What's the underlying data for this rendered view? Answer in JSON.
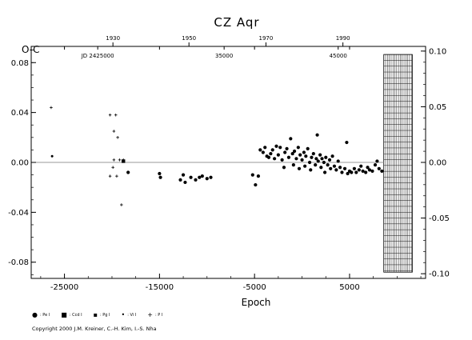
{
  "chart_data": {
    "type": "scatter",
    "title": "CZ Aqr",
    "ylabel": "O-C",
    "xlabel": "Epoch",
    "xlim": [
      -28500,
      13000
    ],
    "ylim": [
      -0.093,
      0.093
    ],
    "right_ylim": [
      -0.1042,
      0.1042
    ],
    "x_ticks": [
      -25000,
      -15000,
      -5000,
      5000
    ],
    "x_tick_labels": [
      "-25000",
      "-15000",
      "-5000",
      "5000"
    ],
    "y_ticks": [
      -0.08,
      -0.04,
      0.0,
      0.04,
      0.08
    ],
    "y_tick_labels": [
      "-0.08",
      "-0.04",
      "0.00",
      "0.04",
      "0.08"
    ],
    "right_ticks": [
      -0.1,
      -0.05,
      0.0,
      0.05,
      0.1
    ],
    "right_tick_labels": [
      "-0.10",
      "-0.05",
      "0.00",
      "0.05",
      "0.10"
    ],
    "top_year_ticks": [
      {
        "x": -19900,
        "label": "1930"
      },
      {
        "x": -11900,
        "label": "1950"
      },
      {
        "x": -3800,
        "label": "1970"
      },
      {
        "x": 4300,
        "label": "1990"
      }
    ],
    "jd_labels": [
      {
        "x": -21500,
        "label": "JD 2425000"
      },
      {
        "x": -8200,
        "label": "35000"
      },
      {
        "x": 3800,
        "label": "45000"
      }
    ],
    "grid_band": {
      "x_start": 8600,
      "x_end": 11600
    },
    "zero_line": 0,
    "legend": [
      {
        "symbol": "●",
        "label": ": Pe I"
      },
      {
        "symbol": "■",
        "label": ": Ccd I"
      },
      {
        "symbol": "▪",
        "label": ": Pg I"
      },
      {
        "symbol": "•",
        "label": ": Vi I"
      },
      {
        "symbol": "+",
        "label": ": P I"
      }
    ],
    "series": [
      {
        "name": ": Pe I",
        "marker": "dot",
        "points": [
          [
            -18300,
            -0.008
          ],
          [
            -15000,
            -0.009
          ],
          [
            -14900,
            -0.012
          ],
          [
            -12800,
            -0.014
          ],
          [
            -12500,
            -0.01
          ],
          [
            -12300,
            -0.016
          ],
          [
            -11700,
            -0.012
          ],
          [
            -11200,
            -0.014
          ],
          [
            -10800,
            -0.012
          ],
          [
            -10500,
            -0.011
          ],
          [
            -10000,
            -0.013
          ],
          [
            -9600,
            -0.012
          ],
          [
            -5200,
            -0.01
          ],
          [
            -4900,
            -0.018
          ],
          [
            -4600,
            -0.011
          ],
          [
            -4400,
            0.01
          ],
          [
            -4100,
            0.008
          ],
          [
            -3900,
            0.012
          ],
          [
            -3700,
            0.005
          ],
          [
            -3500,
            0.004
          ],
          [
            -3300,
            0.007
          ],
          [
            -3100,
            0.01
          ],
          [
            -2900,
            0.003
          ],
          [
            -2700,
            0.013
          ],
          [
            -2500,
            0.006
          ],
          [
            -2300,
            0.012
          ],
          [
            -2100,
            0.002
          ],
          [
            -1900,
            -0.004
          ],
          [
            -1800,
            0.008
          ],
          [
            -1600,
            0.011
          ],
          [
            -1400,
            0.004
          ],
          [
            -1200,
            0.019
          ],
          [
            -1000,
            0.007
          ],
          [
            -900,
            -0.002
          ],
          [
            -800,
            0.009
          ],
          [
            -600,
            0.003
          ],
          [
            -400,
            0.012
          ],
          [
            -300,
            -0.005
          ],
          [
            -200,
            0.006
          ],
          [
            0,
            0.002
          ],
          [
            200,
            0.008
          ],
          [
            300,
            -0.003
          ],
          [
            400,
            0.005
          ],
          [
            600,
            0.011
          ],
          [
            800,
            0.0
          ],
          [
            900,
            -0.006
          ],
          [
            1000,
            0.004
          ],
          [
            1200,
            0.007
          ],
          [
            1400,
            -0.002
          ],
          [
            1500,
            0.003
          ],
          [
            1600,
            0.022
          ],
          [
            1700,
            0.001
          ],
          [
            1900,
            0.006
          ],
          [
            2000,
            -0.004
          ],
          [
            2100,
            0.003
          ],
          [
            2300,
            0.0
          ],
          [
            2400,
            -0.008
          ],
          [
            2500,
            0.004
          ],
          [
            2700,
            -0.002
          ],
          [
            2900,
            0.002
          ],
          [
            3000,
            -0.005
          ],
          [
            3200,
            0.005
          ],
          [
            3400,
            -0.003
          ],
          [
            3600,
            -0.006
          ],
          [
            3800,
            0.001
          ],
          [
            4000,
            -0.004
          ],
          [
            4200,
            -0.008
          ],
          [
            4500,
            -0.005
          ],
          [
            4700,
            0.016
          ],
          [
            4800,
            -0.009
          ],
          [
            5000,
            -0.007
          ],
          [
            5200,
            -0.008
          ],
          [
            5500,
            -0.005
          ],
          [
            5700,
            -0.008
          ],
          [
            6000,
            -0.006
          ],
          [
            6200,
            -0.003
          ],
          [
            6400,
            -0.007
          ],
          [
            6700,
            -0.008
          ],
          [
            6900,
            -0.004
          ],
          [
            7100,
            -0.006
          ],
          [
            7400,
            -0.007
          ],
          [
            7700,
            -0.002
          ],
          [
            7900,
            0.001
          ],
          [
            8100,
            -0.005
          ],
          [
            8400,
            -0.007
          ]
        ]
      },
      {
        "name": ": Ccd I",
        "marker": "square",
        "points": [
          [
            -18800,
            0.001
          ]
        ]
      },
      {
        "name": ": P I",
        "marker": "plus",
        "points": [
          [
            -26400,
            0.044
          ],
          [
            -20200,
            0.038
          ],
          [
            -19800,
            0.025
          ],
          [
            -19600,
            0.038
          ],
          [
            -19400,
            0.02
          ],
          [
            -19200,
            0.002
          ],
          [
            -18800,
            0.002
          ],
          [
            -19800,
            0.002
          ],
          [
            -19900,
            -0.004
          ],
          [
            -19500,
            -0.011
          ],
          [
            -20200,
            -0.011
          ],
          [
            -19000,
            -0.034
          ]
        ]
      },
      {
        "name": ": Vi I",
        "marker": "smalldot",
        "points": [
          [
            -26300,
            0.005
          ]
        ]
      }
    ]
  },
  "copyright": "Copyright 2000 J.M. Kreiner, C.-H. Kim, I.-S. Nha"
}
